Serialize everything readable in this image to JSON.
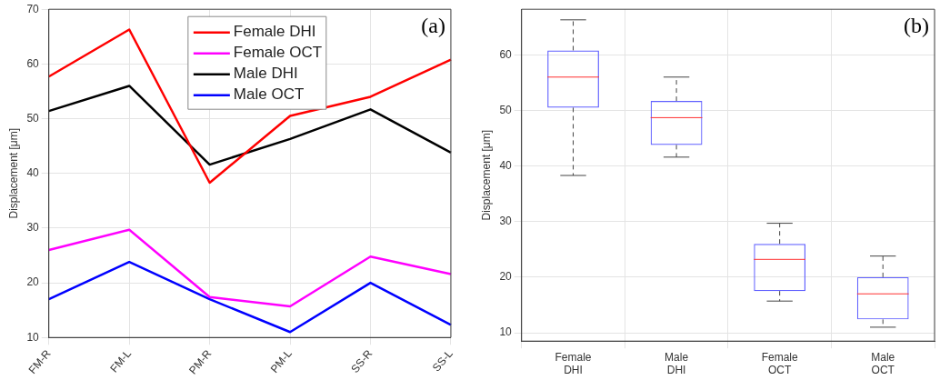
{
  "chart_data": [
    {
      "type": "line",
      "ylabel": "Displacement [μm]",
      "annotations": [
        "(a)"
      ],
      "categories": [
        "FM-R",
        "FM-L",
        "PM-R",
        "PM-L",
        "SS-R",
        "SS-L"
      ],
      "series": [
        {
          "name": "Female DHI",
          "color": "#ff0000",
          "values": [
            57.7,
            66.3,
            38.3,
            50.5,
            54,
            60.8
          ]
        },
        {
          "name": "Female OCT",
          "color": "#ff00ff",
          "values": [
            26,
            29.7,
            17.4,
            15.7,
            24.8,
            21.6
          ]
        },
        {
          "name": "Male DHI",
          "color": "#000000",
          "values": [
            51.4,
            56,
            41.6,
            46.3,
            51.7,
            43.8
          ]
        },
        {
          "name": "Male OCT",
          "color": "#0000ff",
          "values": [
            17,
            23.8,
            17,
            11,
            20,
            12.3
          ]
        }
      ],
      "ylim": [
        10,
        70
      ],
      "yticks": [
        10,
        20,
        30,
        40,
        50,
        60,
        70
      ],
      "grid": true,
      "legend": "top",
      "marker": "none",
      "line_style": "solid"
    },
    {
      "type": "box",
      "ylabel": "Displacement [μm]",
      "annotations": [
        "(b)"
      ],
      "categories": [
        "Female\nDHI",
        "Male\nDHI",
        "Female\nOCT",
        "Male\nOCT"
      ],
      "boxes": [
        {
          "low": 38.3,
          "q1": 50.5,
          "median": 56,
          "q3": 60.8,
          "high": 66.3
        },
        {
          "low": 41.6,
          "q1": 43.8,
          "median": 48.7,
          "q3": 51.7,
          "high": 56
        },
        {
          "low": 15.7,
          "q1": 17.5,
          "median": 23.2,
          "q3": 26,
          "high": 29.7
        },
        {
          "low": 11,
          "q1": 12.4,
          "median": 17,
          "q3": 20,
          "high": 23.8
        }
      ],
      "ylim": [
        8.5,
        68.2
      ],
      "yticks": [
        10,
        20,
        30,
        40,
        50,
        60
      ],
      "grid": true
    }
  ]
}
